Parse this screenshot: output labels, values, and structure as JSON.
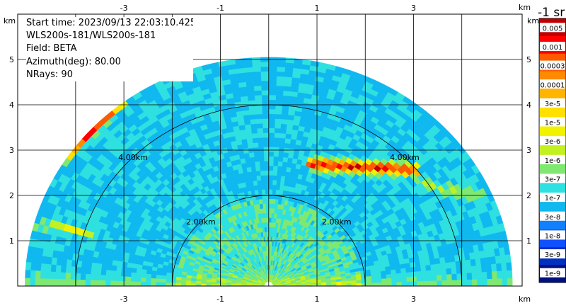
{
  "chart_data": {
    "type": "heatmap",
    "plot_kind": "RHI (range-height indicator) lidar scan",
    "info_lines": [
      "Start time: 2023/09/13 22:03:10.425",
      "WLS200s-181/WLS200s-181",
      "Field: BETA",
      "Azimuth(deg): 80.00",
      "NRays: 90"
    ],
    "axes": {
      "x_unit": "km",
      "y_unit": "km",
      "xlim": [
        -5.2,
        5.25
      ],
      "ylim": [
        0,
        6
      ],
      "x_ticks": [
        -3,
        -1,
        1,
        3
      ],
      "y_ticks": [
        1,
        2,
        3,
        4,
        5
      ],
      "grid": true
    },
    "range_rings": [
      {
        "radius_km": 2,
        "labels": [
          "2.00km",
          "2.00km"
        ]
      },
      {
        "radius_km": 4,
        "labels": [
          "4.00km",
          "4.00km"
        ]
      }
    ],
    "max_range_km": 5.05,
    "colorbar": {
      "unit_label": "-1 sr",
      "position": "right",
      "labels": [
        "0.005",
        "0.001",
        "0.0003",
        "0.0001",
        "3e-5",
        "1e-5",
        "3e-6",
        "1e-6",
        "3e-7",
        "1e-7",
        "3e-8",
        "1e-8",
        "3e-9",
        "1e-9"
      ],
      "colors": [
        "#c00000",
        "#ff0000",
        "#ff5a00",
        "#ff8a00",
        "#ffb400",
        "#ffe000",
        "#f2f200",
        "#c2f020",
        "#7ee870",
        "#2ee0e0",
        "#10b8f0",
        "#1080ff",
        "#1050ff",
        "#0030c0",
        "#001080"
      ]
    },
    "features": [
      {
        "name": "aerosol layer top (left)",
        "range_km": [
          -4.6,
          -3.0
        ],
        "height_km": [
          2.5,
          4.3
        ],
        "level": "3e-5 to 3e-6"
      },
      {
        "name": "aerosol layer top (right)",
        "range_km": [
          0.8,
          3.0
        ],
        "height_km": [
          2.4,
          2.7
        ],
        "level": "1e-5 to 1e-4"
      },
      {
        "name": "surface layer",
        "range_km": [
          -5.1,
          5.1
        ],
        "height_km": [
          0,
          0.4
        ],
        "level": "1e-7"
      }
    ]
  }
}
